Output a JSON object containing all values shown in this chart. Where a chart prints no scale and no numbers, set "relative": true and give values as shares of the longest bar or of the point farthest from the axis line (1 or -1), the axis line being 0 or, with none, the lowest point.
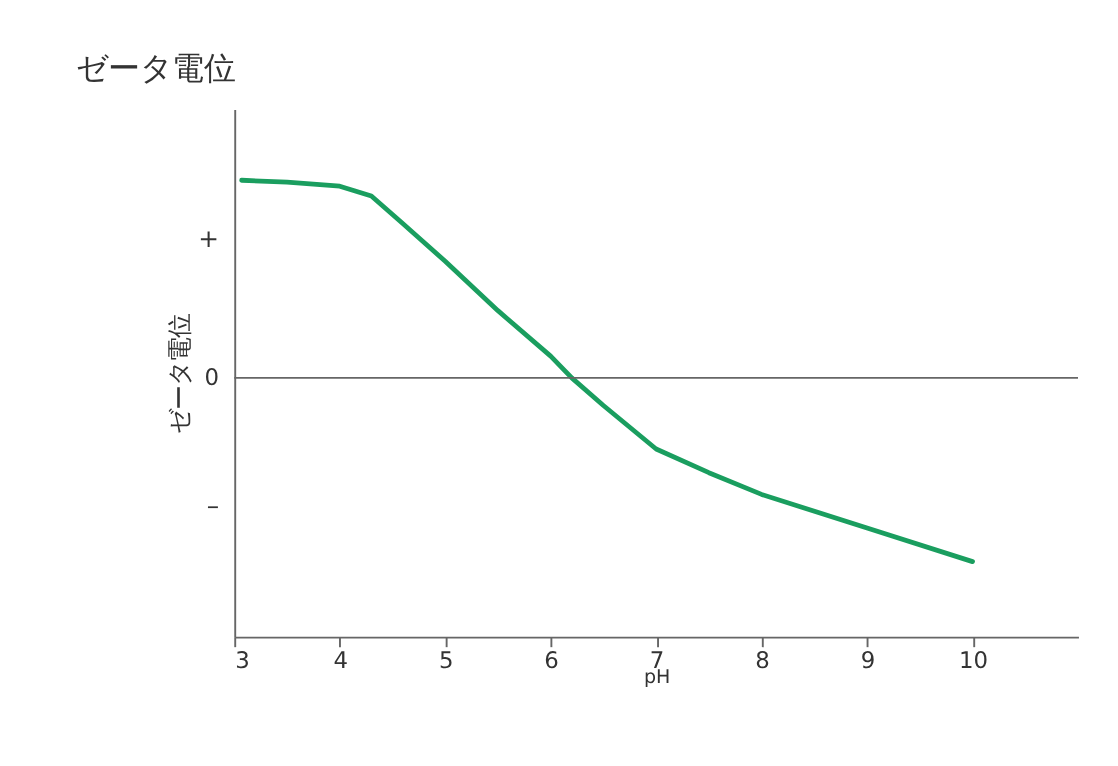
{
  "chart_data": {
    "type": "line",
    "title": "ゼータ電位",
    "xlabel": "pH",
    "ylabel": "ゼータ電位",
    "relative": true,
    "x": [
      3.07,
      3.5,
      4.0,
      4.3,
      4.6,
      5.0,
      5.5,
      6.0,
      6.2,
      6.5,
      7.0,
      7.5,
      8.0,
      9.0,
      10.0
    ],
    "series": [
      {
        "color": "#1a9e5f",
        "values": [
          1.0,
          0.99,
          0.97,
          0.92,
          0.78,
          0.59,
          0.34,
          0.11,
          0.0,
          -0.14,
          -0.36,
          -0.48,
          -0.59,
          -0.76,
          -0.93
        ]
      }
    ],
    "xlim": [
      3,
      11
    ],
    "xticks": [
      3,
      4,
      5,
      6,
      7,
      8,
      9,
      10
    ],
    "ref_lines": [
      {
        "axis": "y",
        "value": 0,
        "label": "0",
        "color": "#666666"
      }
    ],
    "annotations": [
      "+",
      "–"
    ],
    "grid": false,
    "marker": "none",
    "line_style": "solid"
  }
}
